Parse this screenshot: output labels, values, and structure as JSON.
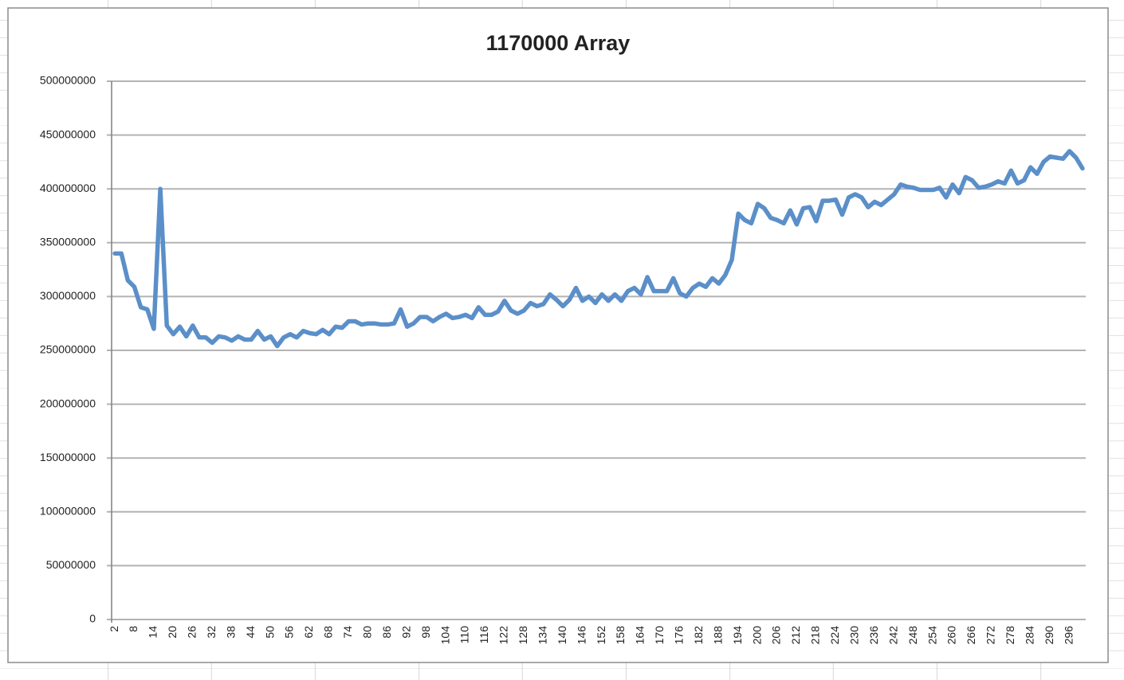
{
  "chart_data": {
    "type": "line",
    "title": "1170000 Array",
    "categories": [
      2,
      null,
      null,
      8,
      null,
      null,
      14,
      null,
      null,
      20,
      null,
      null,
      26,
      null,
      null,
      32,
      null,
      null,
      38,
      null,
      null,
      44,
      null,
      null,
      50,
      null,
      null,
      56,
      null,
      null,
      62,
      null,
      null,
      68,
      null,
      null,
      74,
      null,
      null,
      80,
      null,
      null,
      86,
      null,
      null,
      92,
      null,
      null,
      98,
      null,
      null,
      104,
      null,
      null,
      110,
      null,
      null,
      116,
      null,
      null,
      122,
      null,
      null,
      128,
      null,
      null,
      134,
      null,
      null,
      140,
      null,
      null,
      146,
      null,
      null,
      152,
      null,
      null,
      158,
      null,
      null,
      164,
      null,
      null,
      170,
      null,
      null,
      176,
      null,
      null,
      182,
      null,
      null,
      188,
      null,
      null,
      194,
      null,
      null,
      200,
      null,
      null,
      206,
      null,
      null,
      212,
      null,
      null,
      218,
      null,
      null,
      224,
      null,
      null,
      230,
      null,
      null,
      236,
      null,
      null,
      242,
      null,
      null,
      248,
      null,
      null,
      254,
      null,
      null,
      260,
      null,
      null,
      266,
      null,
      null,
      272,
      null,
      null,
      278,
      null,
      null,
      284,
      null,
      null,
      290,
      null,
      null,
      296,
      null,
      null
    ],
    "values": [
      340000000,
      340000000,
      315000000,
      309000000,
      290000000,
      288000000,
      270000000,
      400000000,
      273000000,
      265000000,
      272000000,
      263000000,
      273000000,
      262000000,
      262000000,
      257000000,
      263000000,
      262000000,
      259000000,
      263000000,
      260000000,
      260000000,
      268000000,
      260000000,
      263000000,
      254000000,
      262000000,
      265000000,
      262000000,
      268000000,
      266000000,
      265000000,
      269000000,
      265000000,
      272000000,
      271000000,
      277000000,
      277000000,
      274000000,
      275000000,
      275000000,
      274000000,
      274000000,
      275000000,
      288000000,
      272000000,
      275000000,
      281000000,
      281000000,
      277000000,
      281000000,
      284000000,
      280000000,
      281000000,
      283000000,
      280000000,
      290000000,
      283000000,
      283000000,
      286000000,
      296000000,
      287000000,
      284000000,
      287000000,
      294000000,
      291000000,
      293000000,
      302000000,
      297000000,
      291000000,
      297000000,
      308000000,
      296000000,
      300000000,
      294000000,
      302000000,
      296000000,
      302000000,
      296000000,
      305000000,
      308000000,
      302000000,
      318000000,
      305000000,
      305000000,
      305000000,
      317000000,
      303000000,
      300000000,
      308000000,
      312000000,
      309000000,
      317000000,
      312000000,
      320000000,
      334000000,
      377000000,
      371000000,
      368000000,
      386000000,
      382000000,
      373000000,
      371000000,
      368000000,
      380000000,
      367000000,
      382000000,
      383000000,
      370000000,
      389000000,
      389000000,
      390000000,
      376000000,
      392000000,
      395000000,
      392000000,
      383000000,
      388000000,
      385000000,
      390000000,
      395000000,
      404000000,
      402000000,
      401000000,
      399000000,
      399000000,
      399000000,
      401000000,
      392000000,
      404000000,
      396000000,
      411000000,
      408000000,
      401000000,
      402000000,
      404000000,
      407000000,
      405000000,
      417000000,
      405000000,
      408000000,
      420000000,
      414000000,
      425000000,
      430000000,
      429000000,
      428000000,
      435000000,
      429000000,
      419000000
    ],
    "color": "#5b8fc9",
    "ylim": [
      0,
      500000000
    ],
    "yticks": [
      0,
      50000000,
      100000000,
      150000000,
      200000000,
      250000000,
      300000000,
      350000000,
      400000000,
      450000000,
      500000000
    ],
    "grid": true
  }
}
